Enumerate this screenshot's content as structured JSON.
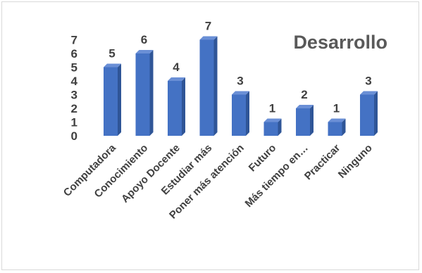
{
  "chart_data": {
    "type": "bar",
    "title": "Desarrollo",
    "categories": [
      "Computadora",
      "Conocimiento",
      "Apoyo Docente",
      "Estudiar más",
      "Poner más atención",
      "Futuro",
      "Más tiempo en…",
      "Practicar",
      "Ninguno"
    ],
    "values": [
      5,
      6,
      4,
      7,
      3,
      1,
      2,
      1,
      3
    ],
    "ylim": [
      0,
      7
    ],
    "yticks": [
      0,
      1,
      2,
      3,
      4,
      5,
      6,
      7
    ],
    "grid": false,
    "legend": "none",
    "data_labels": true,
    "colors": {
      "bar_front": "#4472c4",
      "bar_side": "#2f5597",
      "bar_top": "#6a8fd6",
      "text": "#404040",
      "title": "#595959",
      "border": "#d9d9d9"
    }
  }
}
